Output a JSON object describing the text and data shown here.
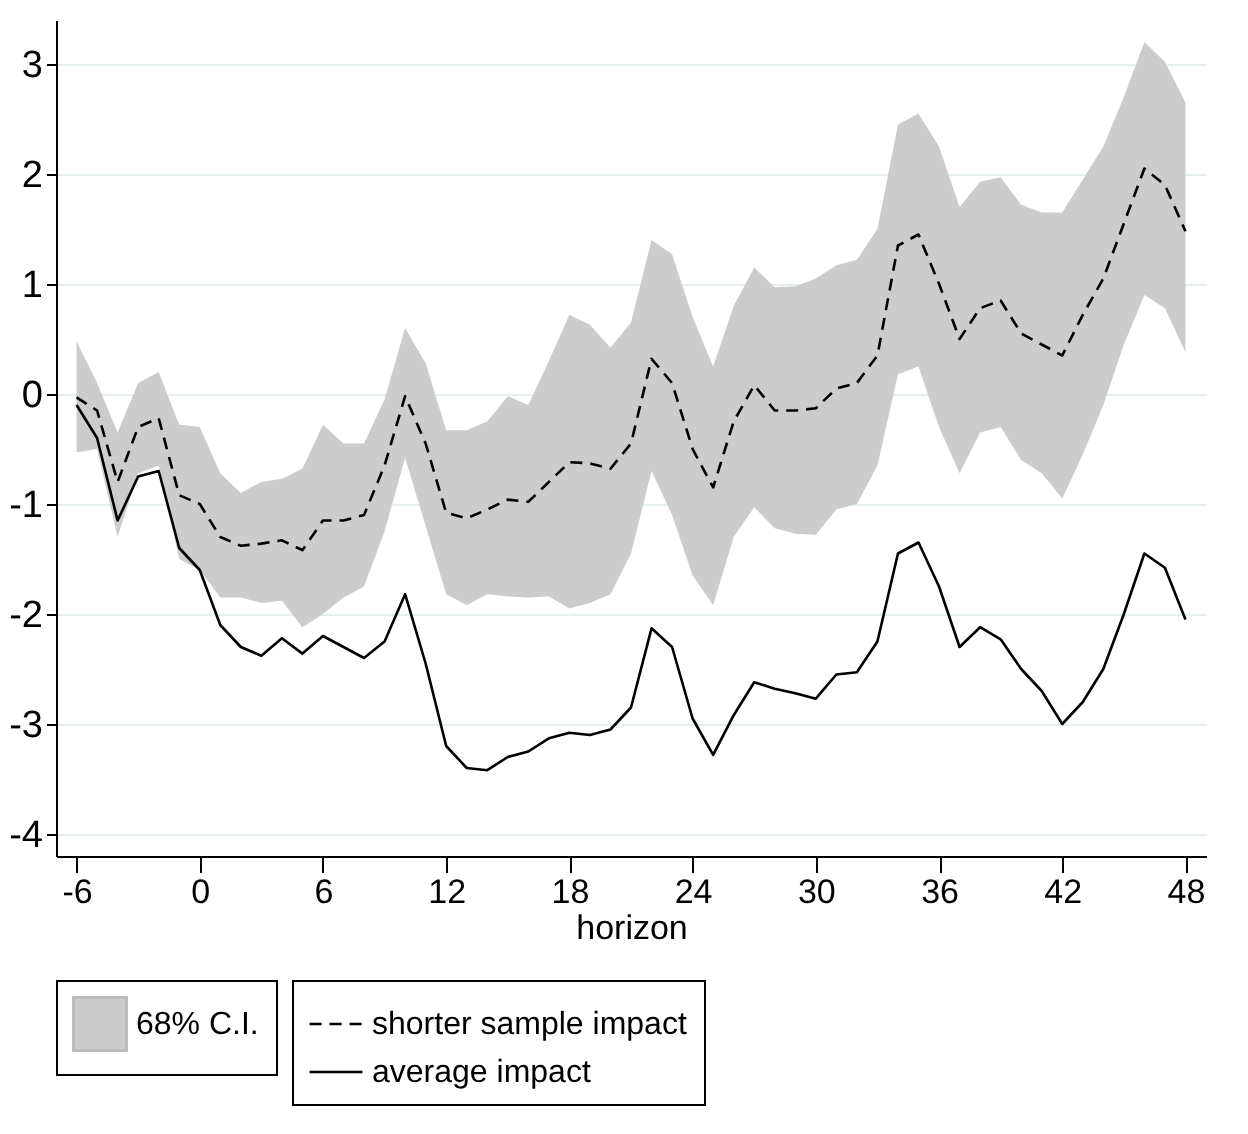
{
  "chart_data": {
    "type": "line",
    "xlabel": "horizon",
    "x": [
      -6,
      -5,
      -4,
      -3,
      -2,
      -1,
      0,
      1,
      2,
      3,
      4,
      5,
      6,
      7,
      8,
      9,
      10,
      11,
      12,
      13,
      14,
      15,
      16,
      17,
      18,
      19,
      20,
      21,
      22,
      23,
      24,
      25,
      26,
      27,
      28,
      29,
      30,
      31,
      32,
      33,
      34,
      35,
      36,
      37,
      38,
      39,
      40,
      41,
      42,
      43,
      44,
      45,
      46,
      47,
      48
    ],
    "series": [
      {
        "name": "shorter sample impact",
        "color": "#000000",
        "line_style": "dashed",
        "values": [
          -0.03,
          -0.15,
          -0.8,
          -0.3,
          -0.22,
          -0.92,
          -1.0,
          -1.3,
          -1.38,
          -1.36,
          -1.33,
          -1.42,
          -1.15,
          -1.15,
          -1.1,
          -0.65,
          -0.02,
          -0.45,
          -1.08,
          -1.13,
          -1.05,
          -0.96,
          -0.98,
          -0.8,
          -0.62,
          -0.63,
          -0.68,
          -0.45,
          0.32,
          0.1,
          -0.5,
          -0.85,
          -0.25,
          0.08,
          -0.15,
          -0.15,
          -0.13,
          0.05,
          0.1,
          0.35,
          1.35,
          1.45,
          1.0,
          0.5,
          0.78,
          0.85,
          0.55,
          0.45,
          0.35,
          0.72,
          1.05,
          1.55,
          2.05,
          1.9,
          1.48
        ],
        "lower": [
          -0.53,
          -0.5,
          -1.3,
          -0.72,
          -0.65,
          -1.5,
          -1.6,
          -1.85,
          -1.85,
          -1.9,
          -1.88,
          -2.12,
          -2.0,
          -1.85,
          -1.75,
          -1.25,
          -0.58,
          -1.2,
          -1.82,
          -1.92,
          -1.82,
          -1.84,
          -1.85,
          -1.84,
          -1.95,
          -1.9,
          -1.82,
          -1.45,
          -0.7,
          -1.1,
          -1.65,
          -1.92,
          -1.3,
          -1.03,
          -1.22,
          -1.27,
          -1.28,
          -1.05,
          -1.0,
          -0.65,
          0.18,
          0.25,
          -0.3,
          -0.72,
          -0.35,
          -0.3,
          -0.6,
          -0.72,
          -0.95,
          -0.55,
          -0.1,
          0.45,
          0.9,
          0.78,
          0.38
        ],
        "upper": [
          0.48,
          0.1,
          -0.35,
          0.1,
          0.2,
          -0.28,
          -0.3,
          -0.72,
          -0.9,
          -0.8,
          -0.77,
          -0.68,
          -0.28,
          -0.45,
          -0.45,
          -0.05,
          0.6,
          0.28,
          -0.33,
          -0.33,
          -0.25,
          -0.02,
          -0.1,
          0.3,
          0.72,
          0.63,
          0.42,
          0.65,
          1.4,
          1.27,
          0.7,
          0.25,
          0.8,
          1.15,
          0.97,
          0.98,
          1.05,
          1.17,
          1.22,
          1.5,
          2.45,
          2.55,
          2.25,
          1.7,
          1.93,
          1.97,
          1.72,
          1.65,
          1.65,
          1.95,
          2.25,
          2.7,
          3.2,
          3.02,
          2.65
        ]
      },
      {
        "name": "average impact",
        "color": "#000000",
        "line_style": "solid",
        "values": [
          -0.1,
          -0.4,
          -1.15,
          -0.75,
          -0.7,
          -1.4,
          -1.6,
          -2.1,
          -2.3,
          -2.38,
          -2.22,
          -2.36,
          -2.2,
          -2.3,
          -2.4,
          -2.25,
          -1.82,
          -2.45,
          -3.2,
          -3.4,
          -3.42,
          -3.3,
          -3.25,
          -3.13,
          -3.08,
          -3.1,
          -3.05,
          -2.85,
          -2.13,
          -2.3,
          -2.95,
          -3.28,
          -2.92,
          -2.62,
          -2.68,
          -2.72,
          -2.77,
          -2.55,
          -2.53,
          -2.25,
          -1.45,
          -1.35,
          -1.75,
          -2.3,
          -2.12,
          -2.23,
          -2.5,
          -2.7,
          -3.0,
          -2.8,
          -2.5,
          -2.0,
          -1.45,
          -1.58,
          -2.05
        ]
      }
    ],
    "annotations": [
      "68% C.I."
    ],
    "xlim": [
      -7,
      49
    ],
    "ylim": [
      -4.2,
      3.4
    ],
    "xticks": [
      -6,
      0,
      6,
      12,
      18,
      24,
      30,
      36,
      42,
      48
    ],
    "yticks": [
      -4,
      -3,
      -2,
      -1,
      0,
      1,
      2,
      3
    ],
    "grid": "y",
    "legend": "bottom",
    "marker": "none"
  }
}
